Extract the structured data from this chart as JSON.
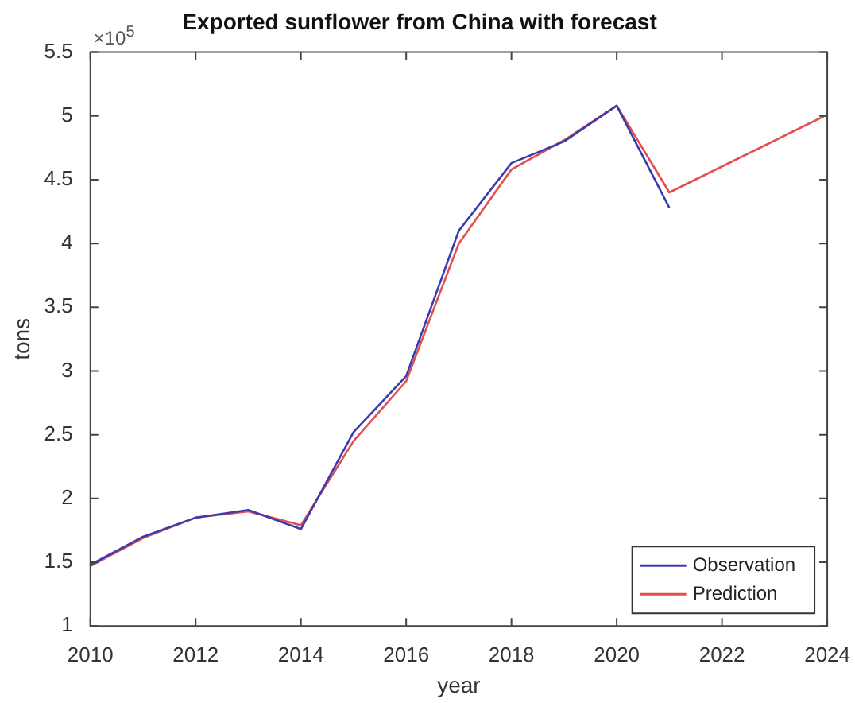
{
  "chart_data": {
    "type": "line",
    "title": "Exported sunflower from China with forecast",
    "xlabel": "year",
    "ylabel": "tons",
    "annotations": [
      "×10$^{5}$"
    ],
    "series": [
      {
        "name": "Observation",
        "color": "#3b3bb0",
        "x": [
          2010,
          2011,
          2012,
          2013,
          2014,
          2015,
          2016,
          2017,
          2018,
          2019,
          2020,
          2021
        ],
        "values": [
          1.48,
          1.7,
          1.85,
          1.91,
          1.76,
          2.52,
          2.96,
          4.1,
          4.63,
          4.8,
          5.08,
          4.28
        ]
      },
      {
        "name": "Prediction",
        "color": "#e05050",
        "x": [
          2010,
          2011,
          2012,
          2013,
          2014,
          2015,
          2016,
          2017,
          2018,
          2019,
          2020,
          2021,
          2024
        ],
        "values": [
          1.47,
          1.69,
          1.85,
          1.9,
          1.79,
          2.45,
          2.92,
          4.0,
          4.58,
          4.81,
          5.08,
          4.4,
          5.01
        ]
      }
    ],
    "xlim": [
      2010,
      2024
    ],
    "xticks": [
      2010,
      2012,
      2014,
      2016,
      2018,
      2020,
      2022,
      2024
    ],
    "ylim": [
      1,
      5.5
    ],
    "yticks": [
      1,
      1.5,
      2,
      2.5,
      3,
      3.5,
      4,
      4.5,
      5,
      5.5
    ],
    "grid": false,
    "legend": "bottom right",
    "marker": "none",
    "line_style": "solid"
  }
}
